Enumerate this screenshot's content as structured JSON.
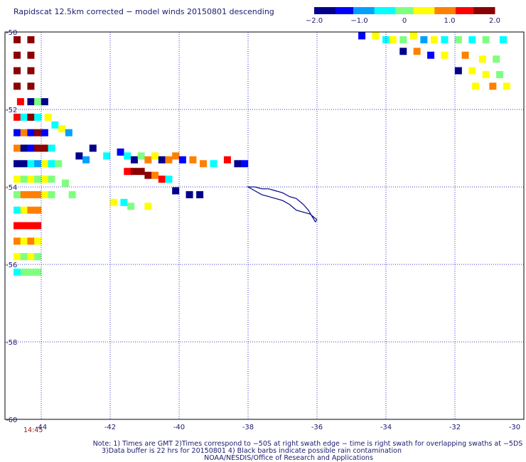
{
  "title": "Rapidscat 12.5km corrected − model winds 20150801 descending",
  "colorbar": {
    "ticks": [
      "−2.0",
      "−1.0",
      "0",
      "1.0",
      "2.0"
    ],
    "range": [
      -2.0,
      2.0
    ],
    "colors": [
      "#00008b",
      "#0000ff",
      "#00a0ff",
      "#00ffff",
      "#7fff7f",
      "#ffff00",
      "#ff8000",
      "#ff0000",
      "#8b0000"
    ]
  },
  "map": {
    "lat_labels": [
      "-50",
      "-52",
      "-54",
      "-56",
      "-58",
      "-60"
    ],
    "lon_labels": [
      "-44",
      "-42",
      "-40",
      "-38",
      "-36",
      "-34",
      "-32",
      "-30"
    ],
    "lon_range": [
      -44.0,
      -30.0
    ],
    "lat_range": [
      -50.0,
      -60.0
    ],
    "coastline_color": "#00008b",
    "grid": "dotted"
  },
  "time_label": "14:45",
  "notes": [
    "Note: 1) Times are GMT 2)Times correspond to −50S at right swath edge − time is right swath for overlapping swaths at −5DS",
    "3)Data buffer is 22 hrs for 20150801 4) Black barbs indicate possible rain contamination",
    "NOAA/NESDIS/Office of Research and Applications"
  ],
  "wind_diff_cells": [
    [
      -44.7,
      -50.2,
      2.0
    ],
    [
      -44.3,
      -50.2,
      2.0
    ],
    [
      -44.7,
      -50.6,
      2.0
    ],
    [
      -44.3,
      -50.6,
      2.0
    ],
    [
      -44.7,
      -51.0,
      1.9
    ],
    [
      -44.3,
      -51.0,
      2.0
    ],
    [
      -44.7,
      -51.4,
      1.8
    ],
    [
      -44.3,
      -51.4,
      1.7
    ],
    [
      -44.6,
      -51.8,
      1.5
    ],
    [
      -44.3,
      -51.8,
      -1.8
    ],
    [
      -44.1,
      -51.8,
      0.2
    ],
    [
      -43.9,
      -51.8,
      -1.6
    ],
    [
      -44.7,
      -52.2,
      1.2
    ],
    [
      -44.5,
      -52.2,
      -0.6
    ],
    [
      -44.3,
      -52.2,
      1.6
    ],
    [
      -44.1,
      -52.2,
      -0.3
    ],
    [
      -43.8,
      -52.2,
      0.5
    ],
    [
      -43.6,
      -52.4,
      -0.5
    ],
    [
      -43.4,
      -52.5,
      0.3
    ],
    [
      -43.2,
      -52.6,
      -0.8
    ],
    [
      -44.7,
      -52.6,
      -1.5
    ],
    [
      -44.5,
      -52.6,
      0.9
    ],
    [
      -44.3,
      -52.6,
      -1.2
    ],
    [
      -44.1,
      -52.6,
      1.9
    ],
    [
      -43.9,
      -52.6,
      -1.4
    ],
    [
      -44.7,
      -53.0,
      0.8
    ],
    [
      -44.5,
      -53.0,
      -1.7
    ],
    [
      -44.3,
      -53.0,
      -1.3
    ],
    [
      -44.1,
      -53.0,
      1.8
    ],
    [
      -43.9,
      -53.0,
      2.0
    ],
    [
      -43.7,
      -53.0,
      -0.4
    ],
    [
      -44.7,
      -53.4,
      -1.9
    ],
    [
      -44.5,
      -53.4,
      -1.6
    ],
    [
      -44.3,
      -53.4,
      -0.5
    ],
    [
      -44.1,
      -53.4,
      -0.9
    ],
    [
      -43.9,
      -53.4,
      0.4
    ],
    [
      -43.7,
      -53.4,
      -0.6
    ],
    [
      -43.5,
      -53.4,
      0.0
    ],
    [
      -42.9,
      -53.2,
      -1.8
    ],
    [
      -42.7,
      -53.3,
      -0.7
    ],
    [
      -42.5,
      -53.0,
      -1.9
    ],
    [
      -42.1,
      -53.2,
      -0.3
    ],
    [
      -41.7,
      -53.1,
      -1.5
    ],
    [
      -41.5,
      -53.2,
      -0.4
    ],
    [
      -41.3,
      -53.3,
      -1.7
    ],
    [
      -41.1,
      -53.2,
      0.1
    ],
    [
      -40.9,
      -53.3,
      0.8
    ],
    [
      -40.7,
      -53.2,
      0.4
    ],
    [
      -40.5,
      -53.3,
      -1.8
    ],
    [
      -40.3,
      -53.3,
      1.0
    ],
    [
      -40.1,
      -53.2,
      0.7
    ],
    [
      -39.9,
      -53.3,
      -1.4
    ],
    [
      -39.6,
      -53.3,
      1.1
    ],
    [
      -39.3,
      -53.4,
      0.9
    ],
    [
      -39.0,
      -53.4,
      -0.6
    ],
    [
      -38.6,
      -53.3,
      1.2
    ],
    [
      -38.3,
      -53.4,
      -1.9
    ],
    [
      -38.1,
      -53.4,
      -1.2
    ],
    [
      -41.5,
      -53.6,
      1.4
    ],
    [
      -41.3,
      -53.6,
      1.9
    ],
    [
      -41.1,
      -53.6,
      1.7
    ],
    [
      -40.9,
      -53.7,
      1.6
    ],
    [
      -40.7,
      -53.7,
      1.0
    ],
    [
      -40.5,
      -53.8,
      1.3
    ],
    [
      -40.3,
      -53.8,
      -0.3
    ],
    [
      -44.7,
      -53.8,
      0.3
    ],
    [
      -44.5,
      -53.8,
      -0.2
    ],
    [
      -44.3,
      -53.8,
      0.5
    ],
    [
      -44.1,
      -53.8,
      0.1
    ],
    [
      -43.9,
      -53.8,
      0.6
    ],
    [
      -43.7,
      -53.8,
      -0.1
    ],
    [
      -43.3,
      -53.9,
      0.0
    ],
    [
      -44.7,
      -54.2,
      0.2
    ],
    [
      -44.5,
      -54.2,
      1.0
    ],
    [
      -44.3,
      -54.2,
      0.7
    ],
    [
      -44.1,
      -54.2,
      0.9
    ],
    [
      -43.9,
      -54.2,
      0.3
    ],
    [
      -43.7,
      -54.2,
      0.1
    ],
    [
      -43.1,
      -54.2,
      0.2
    ],
    [
      -44.7,
      -54.6,
      -0.3
    ],
    [
      -44.5,
      -54.6,
      0.5
    ],
    [
      -44.3,
      -54.6,
      0.8
    ],
    [
      -44.1,
      -54.6,
      1.1
    ],
    [
      -44.7,
      -55.0,
      1.3
    ],
    [
      -44.5,
      -55.0,
      1.5
    ],
    [
      -44.3,
      -55.0,
      1.2
    ],
    [
      -44.1,
      -55.0,
      1.4
    ],
    [
      -44.7,
      -55.4,
      1.1
    ],
    [
      -44.5,
      -55.4,
      0.4
    ],
    [
      -44.3,
      -55.4,
      1.0
    ],
    [
      -44.1,
      -55.4,
      0.6
    ],
    [
      -44.7,
      -55.8,
      0.5
    ],
    [
      -44.5,
      -55.8,
      -0.1
    ],
    [
      -44.3,
      -55.8,
      0.3
    ],
    [
      -44.1,
      -55.8,
      0.2
    ],
    [
      -44.7,
      -56.2,
      -0.3
    ],
    [
      -44.5,
      -56.2,
      0.0
    ],
    [
      -44.3,
      -56.2,
      -0.2
    ],
    [
      -44.1,
      -56.2,
      0.1
    ],
    [
      -41.9,
      -54.4,
      0.3
    ],
    [
      -41.6,
      -54.4,
      -0.5
    ],
    [
      -41.4,
      -54.5,
      0.0
    ],
    [
      -40.9,
      -54.5,
      0.6
    ],
    [
      -40.1,
      -54.1,
      -1.8
    ],
    [
      -39.7,
      -54.2,
      -1.9
    ],
    [
      -39.4,
      -54.2,
      -1.8
    ],
    [
      -34.7,
      -50.1,
      -1.2
    ],
    [
      -34.3,
      -50.1,
      0.3
    ],
    [
      -34.0,
      -50.2,
      -0.4
    ],
    [
      -33.8,
      -50.2,
      0.6
    ],
    [
      -33.5,
      -50.2,
      -0.2
    ],
    [
      -33.2,
      -50.1,
      0.4
    ],
    [
      -32.9,
      -50.2,
      -1.0
    ],
    [
      -32.6,
      -50.2,
      0.5
    ],
    [
      -32.3,
      -50.2,
      -0.6
    ],
    [
      -31.9,
      -50.2,
      0.2
    ],
    [
      -31.5,
      -50.2,
      -0.3
    ],
    [
      -31.1,
      -50.2,
      0.1
    ],
    [
      -30.6,
      -50.2,
      -0.5
    ],
    [
      -33.5,
      -50.5,
      -1.8
    ],
    [
      -33.1,
      -50.5,
      0.7
    ],
    [
      -32.7,
      -50.6,
      -1.5
    ],
    [
      -32.3,
      -50.6,
      0.5
    ],
    [
      -31.7,
      -50.6,
      0.8
    ],
    [
      -31.2,
      -50.7,
      0.3
    ],
    [
      -30.8,
      -50.7,
      -0.2
    ],
    [
      -31.9,
      -51.0,
      -1.7
    ],
    [
      -31.5,
      -51.0,
      0.4
    ],
    [
      -31.1,
      -51.1,
      0.6
    ],
    [
      -30.7,
      -51.1,
      0.1
    ],
    [
      -31.4,
      -51.4,
      0.5
    ],
    [
      -30.9,
      -51.4,
      0.9
    ],
    [
      -30.5,
      -51.4,
      0.3
    ]
  ],
  "coastline": [
    [
      -38.0,
      -54.0
    ],
    [
      -37.8,
      -54.0
    ],
    [
      -37.6,
      -54.05
    ],
    [
      -37.4,
      -54.05
    ],
    [
      -37.2,
      -54.1
    ],
    [
      -37.0,
      -54.15
    ],
    [
      -36.8,
      -54.25
    ],
    [
      -36.6,
      -54.3
    ],
    [
      -36.4,
      -54.45
    ],
    [
      -36.25,
      -54.6
    ],
    [
      -36.15,
      -54.75
    ],
    [
      -36.05,
      -54.9
    ],
    [
      -36.0,
      -54.85
    ],
    [
      -36.2,
      -54.7
    ],
    [
      -36.4,
      -54.65
    ],
    [
      -36.6,
      -54.6
    ],
    [
      -36.8,
      -54.45
    ],
    [
      -37.0,
      -54.35
    ],
    [
      -37.2,
      -54.3
    ],
    [
      -37.4,
      -54.25
    ],
    [
      -37.6,
      -54.2
    ],
    [
      -37.8,
      -54.1
    ],
    [
      -38.0,
      -54.0
    ]
  ]
}
